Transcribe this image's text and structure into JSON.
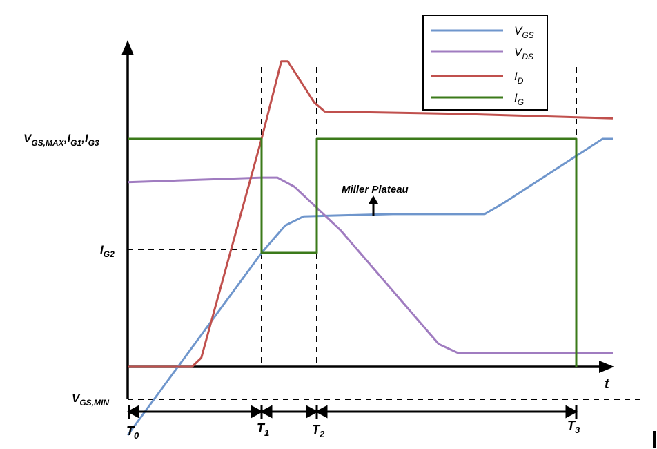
{
  "chart_data": {
    "type": "line",
    "xlabel": "t",
    "ylabel": "",
    "x_markers": [
      {
        "label": "T",
        "sub": "0"
      },
      {
        "label": "T",
        "sub": "1"
      },
      {
        "label": "T",
        "sub": "2"
      },
      {
        "label": "T",
        "sub": "3"
      }
    ],
    "y_markers": [
      {
        "id": "vgsmax",
        "label": "V",
        "sub": "GS,MAX",
        "label2": ",I",
        "sub2": "G1",
        "label3": ",I",
        "sub3": "G3"
      },
      {
        "id": "ig2",
        "label": "I",
        "sub": "G2"
      },
      {
        "id": "vgsmin",
        "label": "V",
        "sub": "GS,MIN"
      }
    ],
    "annotation": "Miller Plateau",
    "legend": [
      {
        "name": "V",
        "sub": "GS",
        "color": "#6f96cc"
      },
      {
        "name": "V",
        "sub": "DS",
        "color": "#a07cc0"
      },
      {
        "name": "I",
        "sub": "D",
        "color": "#c0504d"
      },
      {
        "name": "I",
        "sub": "G",
        "color": "#3b7a1a"
      }
    ],
    "legend_position": "top-right",
    "series": [
      {
        "key": "VGS",
        "color": "#6f96cc",
        "points": [
          [
            0.0,
            -0.3
          ],
          [
            1.0,
            0.5
          ],
          [
            1.18,
            0.62
          ],
          [
            1.32,
            0.66
          ],
          [
            2.0,
            0.67
          ],
          [
            2.7,
            0.67
          ],
          [
            2.85,
            0.72
          ],
          [
            4.3,
            1.0
          ],
          [
            4.65,
            1.0
          ]
        ]
      },
      {
        "key": "VDS",
        "color": "#a07cc0",
        "points": [
          [
            0.0,
            0.81
          ],
          [
            1.0,
            0.83
          ],
          [
            1.12,
            0.83
          ],
          [
            1.25,
            0.79
          ],
          [
            1.6,
            0.6
          ],
          [
            2.35,
            0.1
          ],
          [
            2.5,
            0.06
          ],
          [
            3.5,
            0.06
          ],
          [
            4.65,
            0.06
          ]
        ]
      },
      {
        "key": "ID",
        "color": "#c0504d",
        "points": [
          [
            0.0,
            0.0
          ],
          [
            0.48,
            0.0
          ],
          [
            0.55,
            0.04
          ],
          [
            1.0,
            1.0
          ],
          [
            1.15,
            1.34
          ],
          [
            1.2,
            1.34
          ],
          [
            1.4,
            1.16
          ],
          [
            1.48,
            1.12
          ],
          [
            2.5,
            1.11
          ],
          [
            4.65,
            1.09
          ]
        ]
      },
      {
        "key": "IG",
        "color": "#3b7a1a",
        "points": [
          [
            0.0,
            1.0
          ],
          [
            1.0,
            1.0
          ],
          [
            1.0,
            0.5
          ],
          [
            1.42,
            0.5
          ],
          [
            1.42,
            1.0
          ],
          [
            3.4,
            1.0
          ],
          [
            3.4,
            0.0
          ]
        ]
      }
    ]
  }
}
